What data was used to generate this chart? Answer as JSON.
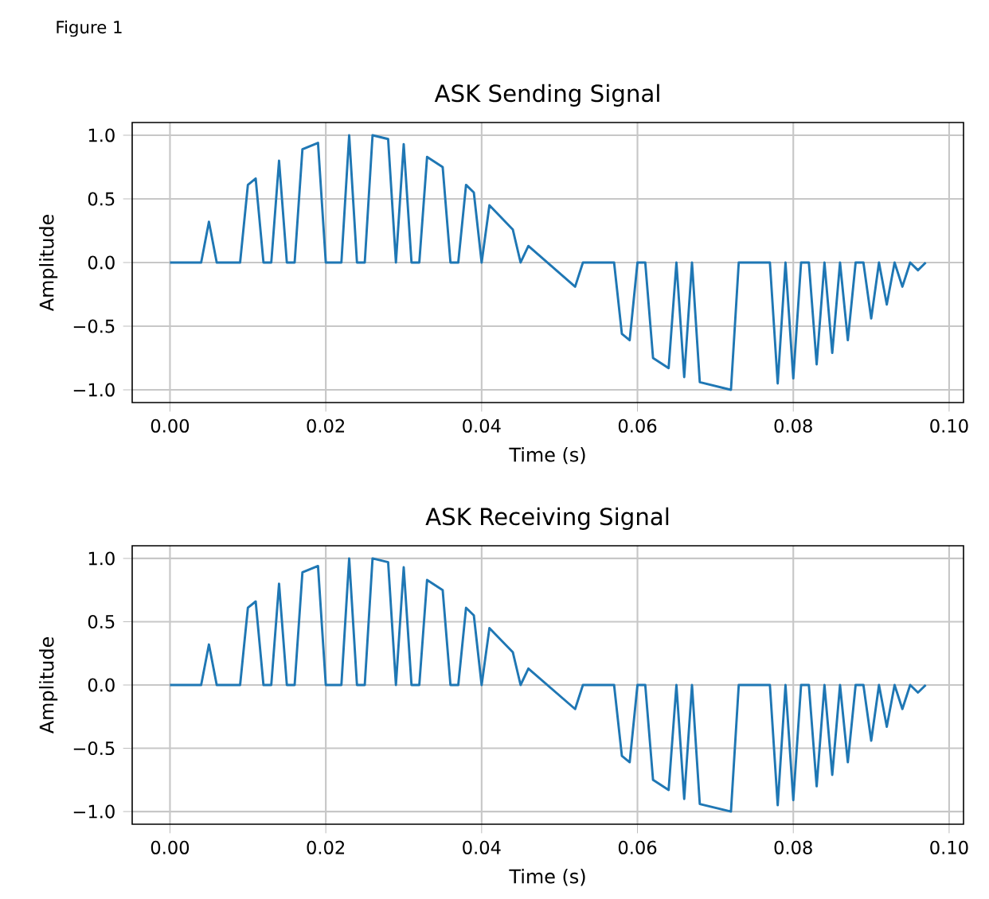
{
  "chart_data": [
    {
      "type": "line",
      "title": "ASK Sending Signal",
      "xlabel": "Time (s)",
      "ylabel": "Amplitude",
      "annotations": [
        "Figure 1"
      ],
      "x": [
        0.0,
        0.004,
        0.005,
        0.006,
        0.009,
        0.01,
        0.011,
        0.012,
        0.013,
        0.014,
        0.015,
        0.016,
        0.017,
        0.019,
        0.02,
        0.022,
        0.023,
        0.024,
        0.025,
        0.026,
        0.028,
        0.029,
        0.03,
        0.031,
        0.032,
        0.033,
        0.035,
        0.036,
        0.037,
        0.038,
        0.039,
        0.04,
        0.041,
        0.044,
        0.045,
        0.046,
        0.052,
        0.053,
        0.057,
        0.058,
        0.059,
        0.06,
        0.061,
        0.062,
        0.064,
        0.065,
        0.066,
        0.067,
        0.068,
        0.072,
        0.073,
        0.077,
        0.078,
        0.079,
        0.08,
        0.081,
        0.082,
        0.083,
        0.084,
        0.085,
        0.086,
        0.087,
        0.088,
        0.089,
        0.09,
        0.091,
        0.092,
        0.093,
        0.094,
        0.095,
        0.096,
        0.097
      ],
      "series": [
        {
          "color": "#1f77b4",
          "values": [
            0,
            0,
            0.32,
            0,
            0,
            0.61,
            0.66,
            0,
            0,
            0.8,
            0,
            0,
            0.89,
            0.94,
            0,
            0,
            1.0,
            0,
            0,
            1.0,
            0.97,
            0,
            0.93,
            0,
            0,
            0.83,
            0.75,
            0,
            0,
            0.61,
            0.55,
            0,
            0.45,
            0.26,
            0,
            0.13,
            -0.19,
            0,
            0,
            -0.56,
            -0.61,
            0,
            0,
            -0.75,
            -0.83,
            0,
            -0.9,
            0,
            -0.94,
            -1.0,
            0,
            0,
            -0.95,
            0,
            -0.91,
            0,
            0,
            -0.8,
            0,
            -0.71,
            0,
            -0.61,
            0,
            0,
            -0.44,
            0,
            -0.33,
            0,
            -0.19,
            0,
            -0.06,
            0
          ]
        }
      ],
      "xlim": [
        -0.00485,
        0.10185
      ],
      "ylim": [
        -1.1,
        1.1
      ],
      "xticks": [
        {
          "value": 0,
          "label": "0.00"
        },
        {
          "value": 0.02,
          "label": "0.02"
        },
        {
          "value": 0.04,
          "label": "0.04"
        },
        {
          "value": 0.06,
          "label": "0.06"
        },
        {
          "value": 0.08,
          "label": "0.08"
        },
        {
          "value": 0.1,
          "label": "0.10"
        }
      ],
      "yticks": [
        {
          "value": -1,
          "label": "−1.0"
        },
        {
          "value": -0.5,
          "label": "−0.5"
        },
        {
          "value": 0,
          "label": "0.0"
        },
        {
          "value": 0.5,
          "label": "0.5"
        },
        {
          "value": 1,
          "label": "1.0"
        }
      ],
      "grid": true,
      "marker": "none",
      "line_style": "solid"
    },
    {
      "type": "line",
      "title": "ASK Receiving Signal",
      "xlabel": "Time (s)",
      "ylabel": "Amplitude",
      "x": [
        0.0,
        0.004,
        0.005,
        0.006,
        0.009,
        0.01,
        0.011,
        0.012,
        0.013,
        0.014,
        0.015,
        0.016,
        0.017,
        0.019,
        0.02,
        0.022,
        0.023,
        0.024,
        0.025,
        0.026,
        0.028,
        0.029,
        0.03,
        0.031,
        0.032,
        0.033,
        0.035,
        0.036,
        0.037,
        0.038,
        0.039,
        0.04,
        0.041,
        0.044,
        0.045,
        0.046,
        0.052,
        0.053,
        0.057,
        0.058,
        0.059,
        0.06,
        0.061,
        0.062,
        0.064,
        0.065,
        0.066,
        0.067,
        0.068,
        0.072,
        0.073,
        0.077,
        0.078,
        0.079,
        0.08,
        0.081,
        0.082,
        0.083,
        0.084,
        0.085,
        0.086,
        0.087,
        0.088,
        0.089,
        0.09,
        0.091,
        0.092,
        0.093,
        0.094,
        0.095,
        0.096,
        0.097
      ],
      "series": [
        {
          "color": "#1f77b4",
          "values": [
            0,
            0,
            0.32,
            0,
            0,
            0.61,
            0.66,
            0,
            0,
            0.8,
            0,
            0,
            0.89,
            0.94,
            0,
            0,
            1.0,
            0,
            0,
            1.0,
            0.97,
            0,
            0.93,
            0,
            0,
            0.83,
            0.75,
            0,
            0,
            0.61,
            0.55,
            0,
            0.45,
            0.26,
            0,
            0.13,
            -0.19,
            0,
            0,
            -0.56,
            -0.61,
            0,
            0,
            -0.75,
            -0.83,
            0,
            -0.9,
            0,
            -0.94,
            -1.0,
            0,
            0,
            -0.95,
            0,
            -0.91,
            0,
            0,
            -0.8,
            0,
            -0.71,
            0,
            -0.61,
            0,
            0,
            -0.44,
            0,
            -0.33,
            0,
            -0.19,
            0,
            -0.06,
            0
          ]
        }
      ],
      "xlim": [
        -0.00485,
        0.10185
      ],
      "ylim": [
        -1.1,
        1.1
      ],
      "xticks": [
        {
          "value": 0,
          "label": "0.00"
        },
        {
          "value": 0.02,
          "label": "0.02"
        },
        {
          "value": 0.04,
          "label": "0.04"
        },
        {
          "value": 0.06,
          "label": "0.06"
        },
        {
          "value": 0.08,
          "label": "0.08"
        },
        {
          "value": 0.1,
          "label": "0.10"
        }
      ],
      "yticks": [
        {
          "value": -1,
          "label": "−1.0"
        },
        {
          "value": -0.5,
          "label": "−0.5"
        },
        {
          "value": 0,
          "label": "0.0"
        },
        {
          "value": 0.5,
          "label": "0.5"
        },
        {
          "value": 1,
          "label": "1.0"
        }
      ],
      "grid": true,
      "marker": "none",
      "line_style": "solid"
    }
  ]
}
